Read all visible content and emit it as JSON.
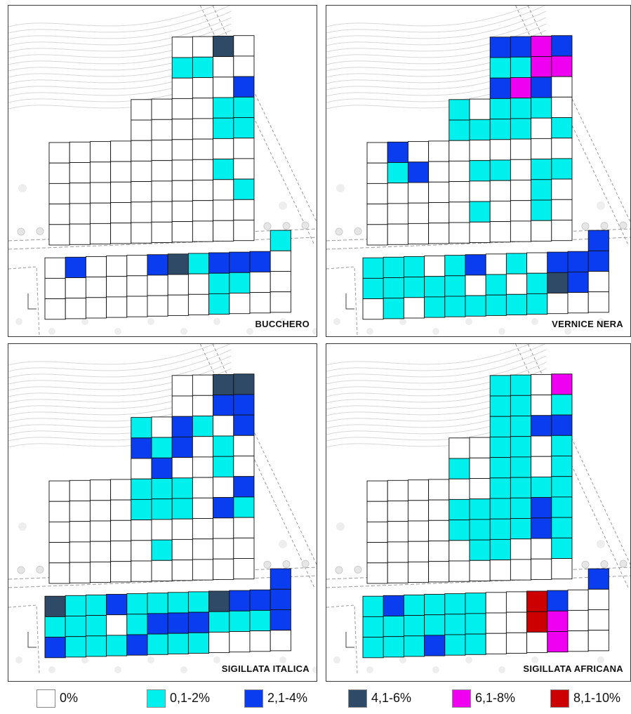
{
  "colors": {
    "white": "#ffffff",
    "cyan": "#00f0ee",
    "blue": "#0a3cf0",
    "dark": "#2e4a66",
    "magenta": "#f000f0",
    "red": "#cc0000"
  },
  "legend": [
    {
      "label": "0%",
      "color": "#ffffff"
    },
    {
      "label": "0,1-2%",
      "color": "#00f0ee"
    },
    {
      "label": "2,1-4%",
      "color": "#0a3cf0"
    },
    {
      "label": "4,1-6%",
      "color": "#2e4a66"
    },
    {
      "label": "6,1-8%",
      "color": "#f000f0"
    },
    {
      "label": "8,1-10%",
      "color": "#cc0000"
    }
  ],
  "panels": [
    {
      "title": "BUCCHERO",
      "upper_rows": [
        "......WWDW",
        "......CCWW",
        "......WWWB",
        "....WWWWCC",
        "....WWWWCC",
        "WWWWWWWWWW",
        "WWWWWWWWCW",
        "WWWWWWWWWC",
        "WWWWWWWWWW",
        "WWWWWWWWWW"
      ],
      "lower_rows": [
        "...........C",
        "WBWWWBDCBBBW",
        "WWWWWWWWCCWW",
        "WWWWWWWWCWWW"
      ]
    },
    {
      "title": "VERNICE NERA",
      "upper_rows": [
        "......BBMB",
        "......CCMM",
        "......BMBW",
        "....CWCCCW",
        "....CCCCWC",
        "WBWWWWWWWW",
        "WCBWWCCWCC",
        "WWWWWWWWCW",
        "WWWWWCWWCW",
        "WWWWWWWWWW"
      ],
      "lower_rows": [
        "...........B",
        "CCCWCBWCWBBB",
        "CCCCCWCWCDBW",
        "WCWCCCCCCWWW"
      ]
    },
    {
      "title": "SIGILLATA ITALICA",
      "upper_rows": [
        "......WWDD",
        "......WWBB",
        "....CWBCWB",
        "....BCBWCW",
        "....WBWWCW",
        "WWWWCCCWWB",
        "WWWWCCCWBC",
        "WWWWWWWWWW",
        "WWWWWCWWWW",
        "WWWWWWWWWW"
      ],
      "lower_rows": [
        "...........B",
        "DCCBCCCCDBBB",
        "CCCWCBBBCCCB",
        "BCCCBCCCWWWW"
      ]
    },
    {
      "title": "SIGILLATA AFRICANA",
      "upper_rows": [
        "......CCWM",
        "......CCWC",
        "......CCBB",
        "....WWCCWC",
        "....CWCCWC",
        "WWWWWWCCCC",
        "WWWWCCCCBC",
        "WWWWCCCCBC",
        "WWWWWCCWWC",
        "WWWWWWWWWW"
      ],
      "lower_rows": [
        "...........B",
        "CBCCCCWWRBWW",
        "CCCCCCWWRMWW",
        "CCCBCCWWWMWW"
      ]
    }
  ]
}
